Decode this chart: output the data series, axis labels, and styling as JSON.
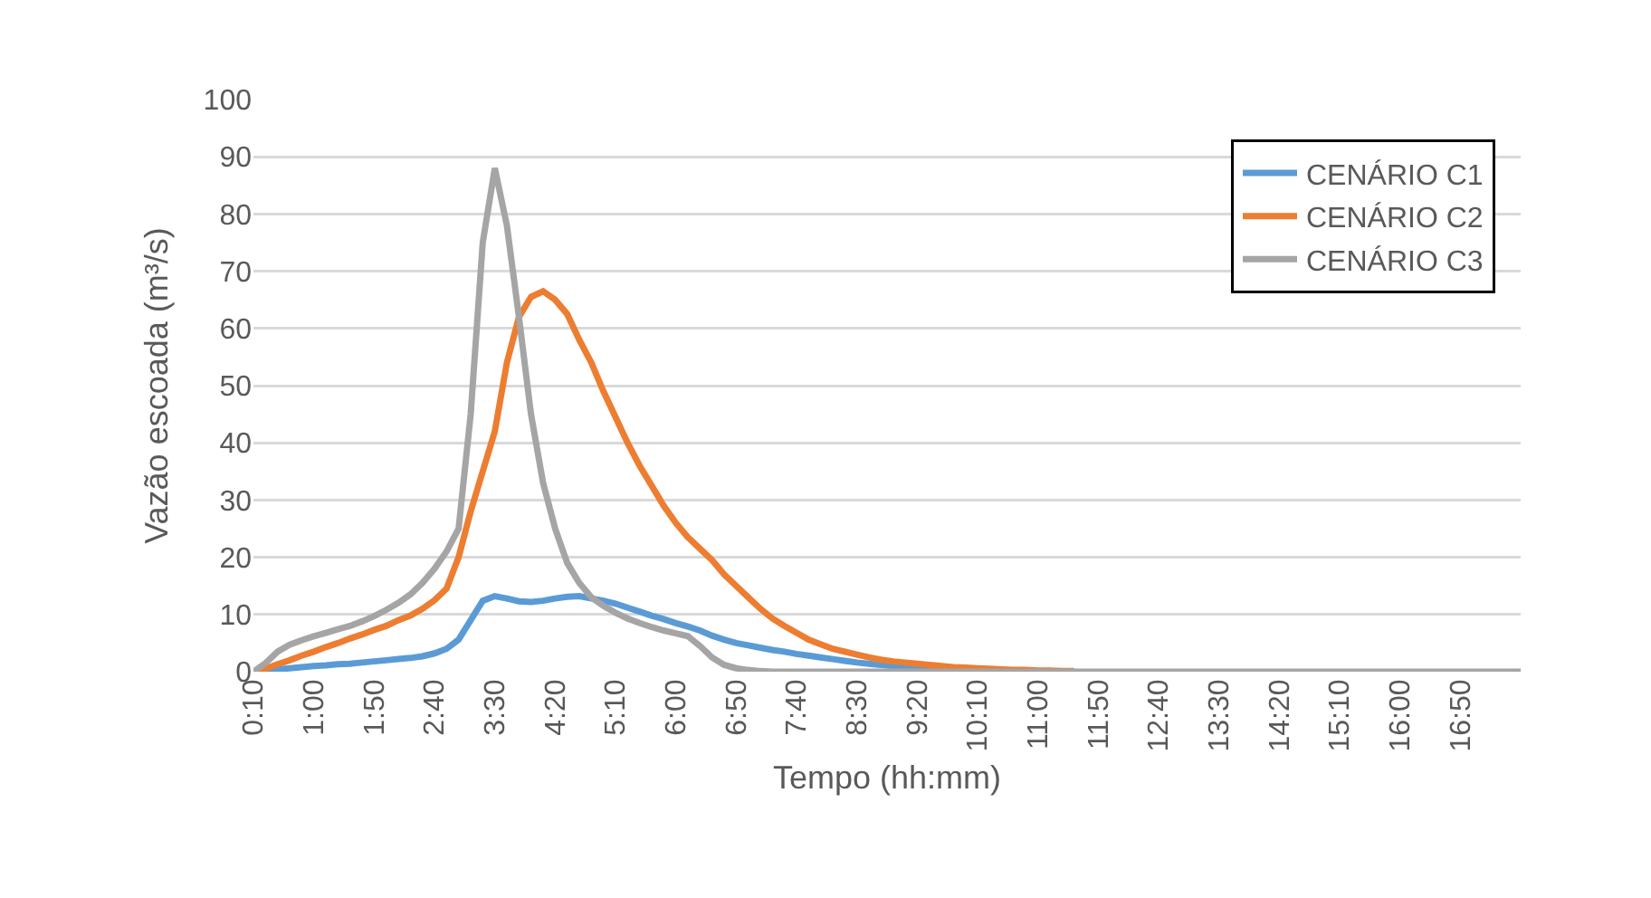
{
  "chart_data": {
    "type": "line",
    "xlabel": "Tempo (hh:mm)",
    "ylabel": "Vazão escoada (m³/s)",
    "x": [
      0.1667,
      0.3333,
      0.5,
      0.6667,
      0.8333,
      1,
      1.1667,
      1.3333,
      1.5,
      1.6667,
      1.8333,
      2,
      2.1667,
      2.3333,
      2.5,
      2.6667,
      2.8333,
      3,
      3.1667,
      3.3333,
      3.5,
      3.6667,
      3.8333,
      4,
      4.1667,
      4.3333,
      4.5,
      4.6667,
      4.8333,
      5,
      5.1667,
      5.3333,
      5.5,
      5.6667,
      5.8333,
      6,
      6.1667,
      6.3333,
      6.5,
      6.6667,
      6.8333,
      7,
      7.1667,
      7.3333,
      7.5,
      7.6667,
      7.8333,
      8,
      8.1667,
      8.3333,
      8.5,
      8.6667,
      8.8333,
      9,
      9.1667,
      9.3333,
      9.5,
      9.6667,
      9.8333,
      10,
      10.1667,
      10.3333,
      10.5,
      10.6667,
      10.8333,
      11,
      11.1667,
      11.3333,
      11.5,
      11.6667,
      11.8333,
      17.6667
    ],
    "series": [
      {
        "name": "CENÁRIO C1",
        "color": "#5b9bd5",
        "values": [
          0,
          0.2,
          0.4,
          0.6,
          0.8,
          1,
          1.1,
          1.3,
          1.4,
          1.6,
          1.8,
          2,
          2.2,
          2.4,
          2.7,
          3.2,
          4,
          5.6,
          9,
          12.4,
          13.2,
          12.8,
          12.3,
          12.2,
          12.4,
          12.8,
          13.1,
          13.2,
          12.8,
          12.4,
          11.9,
          11.2,
          10.5,
          9.8,
          9.2,
          8.5,
          7.9,
          7.2,
          6.3,
          5.6,
          5,
          4.6,
          4.2,
          3.8,
          3.5,
          3.1,
          2.8,
          2.5,
          2.2,
          1.9,
          1.6,
          1.4,
          1.2,
          1,
          0.8,
          0.7,
          0.6,
          0.5,
          0.4,
          null,
          null,
          null,
          null,
          null,
          null,
          null,
          null,
          null,
          null,
          null,
          null,
          null
        ]
      },
      {
        "name": "CENÁRIO C2",
        "color": "#ed7d31",
        "values": [
          0,
          0.5,
          1.3,
          2,
          2.8,
          3.5,
          4.3,
          5,
          5.8,
          6.5,
          7.3,
          8,
          9,
          9.8,
          11,
          12.5,
          14.5,
          20,
          28,
          35,
          42,
          54,
          62,
          65.5,
          66.5,
          65,
          62.5,
          58,
          54,
          49,
          44.5,
          40,
          36,
          32.5,
          29,
          26,
          23.5,
          21.5,
          19.5,
          17,
          15,
          13,
          11,
          9.3,
          8,
          6.8,
          5.6,
          4.8,
          4,
          3.5,
          3,
          2.5,
          2.1,
          1.8,
          1.6,
          1.4,
          1.2,
          1,
          0.8,
          0.7,
          0.6,
          0.5,
          0.4,
          0.3,
          0.3,
          0.2,
          0.2,
          0.1,
          0.1,
          null,
          null,
          null
        ]
      },
      {
        "name": "CENÁRIO C3",
        "color": "#a5a5a5",
        "values": [
          0,
          1.5,
          3.5,
          4.7,
          5.5,
          6.2,
          6.8,
          7.4,
          8,
          8.8,
          9.7,
          10.8,
          12,
          13.5,
          15.5,
          18,
          21,
          25,
          45,
          75,
          88,
          78,
          62,
          45,
          33,
          25,
          19,
          15.5,
          13,
          11.5,
          10.3,
          9.3,
          8.5,
          7.8,
          7.2,
          6.7,
          6.2,
          4.5,
          2.5,
          1.2,
          0.6,
          0.3,
          0.1,
          0,
          0,
          0,
          0,
          0,
          0,
          0,
          0,
          0,
          0,
          0,
          0,
          0,
          0,
          0,
          0,
          0,
          0,
          0,
          0,
          0,
          0,
          0,
          0,
          0,
          0,
          0,
          0,
          0
        ]
      }
    ],
    "xlim": [
      0.1667,
      17.6667
    ],
    "xticks": [
      {
        "value": 0.1667,
        "label": "0:10"
      },
      {
        "value": 1,
        "label": "1:00"
      },
      {
        "value": 1.8333,
        "label": "1:50"
      },
      {
        "value": 2.6667,
        "label": "2:40"
      },
      {
        "value": 3.5,
        "label": "3:30"
      },
      {
        "value": 4.3333,
        "label": "4:20"
      },
      {
        "value": 5.1667,
        "label": "5:10"
      },
      {
        "value": 6,
        "label": "6:00"
      },
      {
        "value": 6.8333,
        "label": "6:50"
      },
      {
        "value": 7.6667,
        "label": "7:40"
      },
      {
        "value": 8.5,
        "label": "8:30"
      },
      {
        "value": 9.3333,
        "label": "9:20"
      },
      {
        "value": 10.1667,
        "label": "10:10"
      },
      {
        "value": 11,
        "label": "11:00"
      },
      {
        "value": 11.8333,
        "label": "11:50"
      },
      {
        "value": 12.6667,
        "label": "12:40"
      },
      {
        "value": 13.5,
        "label": "13:30"
      },
      {
        "value": 14.3333,
        "label": "14:20"
      },
      {
        "value": 15.1667,
        "label": "15:10"
      },
      {
        "value": 16,
        "label": "16:00"
      },
      {
        "value": 16.8333,
        "label": "16:50"
      }
    ],
    "ylim": [
      0,
      100
    ],
    "yticks": [
      0,
      10,
      20,
      30,
      40,
      50,
      60,
      70,
      80,
      90,
      100
    ],
    "grid": "y",
    "legend": "top right",
    "marker": "none",
    "line_style": "solid"
  }
}
